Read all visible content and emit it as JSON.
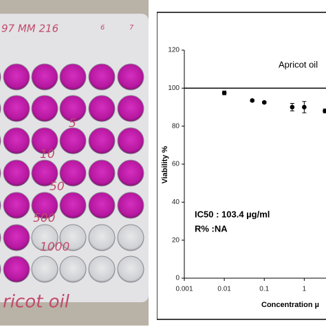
{
  "photo": {
    "header": "97 MM 216",
    "columns": [
      "6",
      "7"
    ],
    "doses": [
      "5",
      "10",
      "50",
      "500",
      "1000"
    ],
    "caption": "ricot oil"
  },
  "chart_data": {
    "type": "scatter",
    "title": "Apricot oil",
    "annotations": [
      "IC50 : 103.4 µg/ml",
      "R% :NA"
    ],
    "xlabel": "Concentration µ",
    "ylabel": "Viability %",
    "xlog": true,
    "xlim": [
      0.001,
      3.5
    ],
    "xticks": [
      0.001,
      0.01,
      0.1,
      1
    ],
    "ylim": [
      0,
      120
    ],
    "yticks": [
      0,
      20,
      40,
      60,
      80,
      100,
      120
    ],
    "reference_line": 100,
    "series": [
      {
        "name": "Apricot oil",
        "color": "#000000",
        "x": [
          0.01,
          0.05,
          0.1,
          0.5,
          1,
          3.3
        ],
        "values": [
          97.5,
          93.5,
          92.5,
          90,
          90,
          88
        ],
        "errors": [
          1,
          0.5,
          0.5,
          2,
          3,
          1
        ]
      }
    ]
  }
}
